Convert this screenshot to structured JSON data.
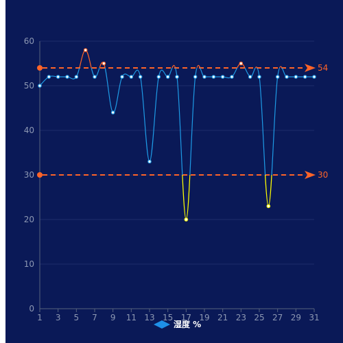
{
  "chart_data": {
    "type": "line",
    "x": [
      1,
      2,
      3,
      4,
      5,
      6,
      7,
      8,
      9,
      10,
      11,
      12,
      13,
      14,
      15,
      16,
      17,
      18,
      19,
      20,
      21,
      22,
      23,
      24,
      25,
      26,
      27,
      28,
      29,
      30,
      31
    ],
    "x_tick_labels": [
      "1",
      "3",
      "5",
      "7",
      "9",
      "11",
      "13",
      "15",
      "17",
      "19",
      "21",
      "23",
      "25",
      "27",
      "29",
      "31"
    ],
    "series": [
      {
        "name": "湿度 %",
        "values": [
          50,
          52,
          52,
          52,
          52,
          58,
          52,
          55,
          44,
          52,
          52,
          52,
          33,
          52,
          52,
          52,
          20,
          52,
          52,
          52,
          52,
          52,
          55,
          52,
          52,
          23,
          52,
          52,
          52,
          52,
          52
        ]
      }
    ],
    "ylim": [
      0,
      60
    ],
    "y_ticks": [
      0,
      10,
      20,
      30,
      40,
      50,
      60
    ],
    "thresholds": [
      {
        "value": 54,
        "label": "54",
        "color": "#ff6428"
      },
      {
        "value": 30,
        "label": "30",
        "color": "#ff6428"
      }
    ],
    "grid": "horizontal",
    "legend_position": "bottom-center",
    "colors": {
      "background": "#0a1957",
      "line_normal": "#1e9be6",
      "line_high": "#ff6428",
      "line_low": "#ffff00",
      "grid": "#1f2d6b",
      "axis": "#56627e",
      "tick_text": "#8d98b3",
      "legend_icon": "#1e90e8"
    }
  }
}
